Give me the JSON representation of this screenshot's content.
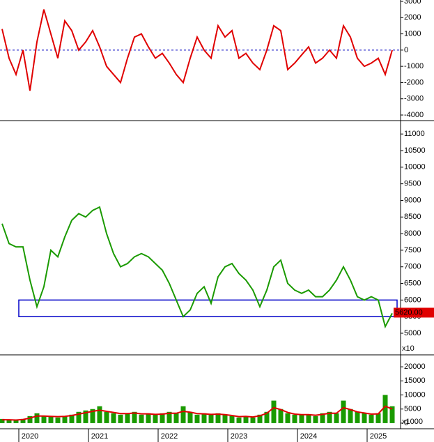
{
  "chart_data": [
    {
      "type": "line",
      "x": [
        2019.6,
        2019.7,
        2019.8,
        2019.9,
        2020.0,
        2020.1,
        2020.2,
        2020.3,
        2020.4,
        2020.5,
        2020.6,
        2020.7,
        2020.8,
        2020.9,
        2021.0,
        2021.1,
        2021.2,
        2021.3,
        2021.4,
        2021.5,
        2021.6,
        2021.7,
        2021.8,
        2021.9,
        2022.0,
        2022.1,
        2022.2,
        2022.3,
        2022.4,
        2022.5,
        2022.6,
        2022.7,
        2022.8,
        2022.9,
        2023.0,
        2023.1,
        2023.2,
        2023.3,
        2023.4,
        2023.5,
        2023.6,
        2023.7,
        2023.8,
        2023.9,
        2024.0,
        2024.1,
        2024.2,
        2024.3,
        2024.4,
        2024.5,
        2024.6,
        2024.7,
        2024.8,
        2024.9,
        2025.0,
        2025.1,
        2025.2
      ],
      "series": [
        {
          "color": "#e00000",
          "values": [
            1300,
            -500,
            -1500,
            0,
            -2500,
            500,
            2500,
            1000,
            -500,
            1800,
            1200,
            0,
            500,
            1200,
            200,
            -1000,
            -1500,
            -2000,
            -500,
            800,
            1000,
            200,
            -500,
            -200,
            -800,
            -1500,
            -2000,
            -500,
            800,
            0,
            -500,
            1500,
            800,
            1200,
            -500,
            -200,
            -800,
            -1200,
            0,
            1500,
            1200,
            -1200,
            -800,
            -300,
            200,
            -800,
            -500,
            0,
            -500,
            1500,
            800,
            -500,
            -1000,
            -800,
            -500,
            -1500,
            0
          ]
        }
      ],
      "reference_line": 0,
      "xlim": [
        2019.57,
        2025.32
      ],
      "ylim": [
        -4300,
        3000
      ],
      "yticks": [
        3000,
        2000,
        1000,
        0,
        -1000,
        -2000,
        -3000,
        -4000
      ]
    },
    {
      "type": "line",
      "x": [
        2019.6,
        2019.7,
        2019.8,
        2019.9,
        2020.0,
        2020.1,
        2020.2,
        2020.3,
        2020.4,
        2020.5,
        2020.6,
        2020.7,
        2020.8,
        2020.9,
        2021.0,
        2021.1,
        2021.2,
        2021.3,
        2021.4,
        2021.5,
        2021.6,
        2021.7,
        2021.8,
        2021.9,
        2022.0,
        2022.1,
        2022.2,
        2022.3,
        2022.4,
        2022.5,
        2022.6,
        2022.7,
        2022.8,
        2022.9,
        2023.0,
        2023.1,
        2023.2,
        2023.3,
        2023.4,
        2023.5,
        2023.6,
        2023.7,
        2023.8,
        2023.9,
        2024.0,
        2024.1,
        2024.2,
        2024.3,
        2024.4,
        2024.5,
        2024.6,
        2024.7,
        2024.8,
        2024.9,
        2025.0,
        2025.1,
        2025.2
      ],
      "series": [
        {
          "color": "#1a9a00",
          "values": [
            8300,
            7700,
            7600,
            7600,
            6600,
            5800,
            6400,
            7500,
            7300,
            7900,
            8400,
            8600,
            8500,
            8700,
            8800,
            8000,
            7400,
            7000,
            7100,
            7300,
            7400,
            7300,
            7100,
            6900,
            6500,
            6000,
            5500,
            5700,
            6200,
            6400,
            5900,
            6700,
            7000,
            7100,
            6800,
            6600,
            6300,
            5800,
            6300,
            7000,
            7200,
            6500,
            6300,
            6200,
            6300,
            6100,
            6100,
            6300,
            6600,
            7000,
            6600,
            6100,
            6000,
            6100,
            6000,
            5200,
            5600
          ]
        }
      ],
      "zone": [
        5500,
        6000
      ],
      "last_price": {
        "value": 5620,
        "label": "5620.00"
      },
      "scale_note": "x10",
      "xlim": [
        2019.57,
        2025.32
      ],
      "ylim": [
        4370,
        11340
      ],
      "yticks": [
        11000,
        10500,
        10000,
        9500,
        9000,
        8500,
        8000,
        7500,
        7000,
        6500,
        6000,
        5500,
        5000
      ]
    },
    {
      "type": "bar",
      "x": [
        2019.6,
        2019.7,
        2019.8,
        2019.9,
        2020.0,
        2020.1,
        2020.2,
        2020.3,
        2020.4,
        2020.5,
        2020.6,
        2020.7,
        2020.8,
        2020.9,
        2021.0,
        2021.1,
        2021.2,
        2021.3,
        2021.4,
        2021.5,
        2021.6,
        2021.7,
        2021.8,
        2021.9,
        2022.0,
        2022.1,
        2022.2,
        2022.3,
        2022.4,
        2022.5,
        2022.6,
        2022.7,
        2022.8,
        2022.9,
        2023.0,
        2023.1,
        2023.2,
        2023.3,
        2023.4,
        2023.5,
        2023.6,
        2023.7,
        2023.8,
        2023.9,
        2024.0,
        2024.1,
        2024.2,
        2024.3,
        2024.4,
        2024.5,
        2024.6,
        2024.7,
        2024.8,
        2024.9,
        2025.0,
        2025.1,
        2025.2
      ],
      "series": [
        {
          "color": "#1a9a00",
          "values": [
            1500,
            1200,
            1000,
            1500,
            2500,
            3500,
            2500,
            2500,
            2000,
            2500,
            3000,
            4000,
            4500,
            5000,
            6000,
            4000,
            3500,
            3000,
            3500,
            4000,
            3000,
            3500,
            3000,
            3500,
            4000,
            3500,
            6000,
            4000,
            3000,
            3500,
            3000,
            3500,
            3000,
            2500,
            2000,
            2500,
            2000,
            3000,
            4000,
            8000,
            5000,
            3500,
            3000,
            3000,
            3000,
            2500,
            3500,
            4000,
            3500,
            8000,
            5000,
            4000,
            3500,
            3000,
            3500,
            10000,
            6000
          ]
        },
        {
          "color": "#e00000",
          "values": [
            1200,
            1200,
            1100,
            1300,
            1800,
            2500,
            2500,
            2400,
            2300,
            2400,
            2700,
            3200,
            3700,
            4200,
            4600,
            4200,
            3800,
            3400,
            3400,
            3600,
            3300,
            3300,
            3100,
            3200,
            3500,
            3500,
            4200,
            3900,
            3400,
            3300,
            3100,
            3200,
            3000,
            2700,
            2300,
            2400,
            2200,
            2600,
            3500,
            5500,
            4800,
            3800,
            3200,
            3000,
            3000,
            2800,
            3100,
            3500,
            3500,
            5500,
            4800,
            4000,
            3600,
            3200,
            3300,
            6000,
            5000
          ]
        }
      ],
      "scale_note": "x1000",
      "xlim": [
        2019.57,
        2025.32
      ],
      "ylim": [
        -1500,
        23500
      ],
      "yticks": [
        20000,
        15000,
        10000,
        5000,
        0
      ],
      "xticks": [
        2020,
        2021,
        2022,
        2023,
        2024,
        2025
      ]
    }
  ]
}
